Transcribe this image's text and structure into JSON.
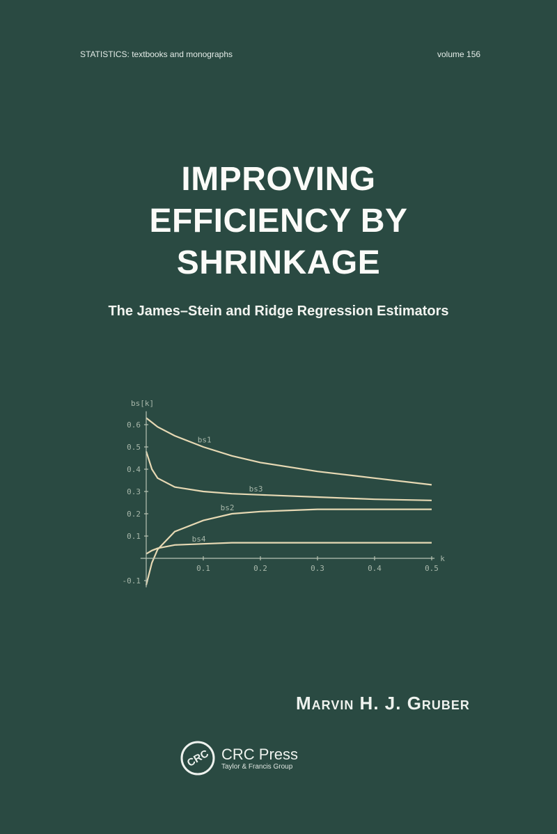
{
  "cover": {
    "series": "STATISTICS:  textbooks and monographs",
    "volume": "volume 156",
    "title_lines": [
      "IMPROVING",
      "EFFICIENCY BY",
      "SHRINKAGE"
    ],
    "subtitle": "The James–Stein and Ridge Regression Estimators",
    "author": "Marvin H. J. Gruber",
    "publisher": "CRC Press",
    "publisher_group": "Taylor & Francis Group",
    "logo_text": "CRC"
  },
  "chart_data": {
    "type": "line",
    "title": "",
    "xlabel": "k",
    "ylabel": "bs[k]",
    "xlim": [
      0,
      0.5
    ],
    "ylim": [
      -0.12,
      0.65
    ],
    "x_ticks": [
      "0.1",
      "0.2",
      "0.3",
      "0.4",
      "0.5"
    ],
    "y_ticks": [
      "-0.1",
      "0.1",
      "0.2",
      "0.3",
      "0.4",
      "0.5",
      "0.6"
    ],
    "grid": false,
    "x": [
      0,
      0.01,
      0.02,
      0.05,
      0.1,
      0.15,
      0.2,
      0.3,
      0.4,
      0.5
    ],
    "series": [
      {
        "name": "bs1",
        "values": [
          0.63,
          0.61,
          0.59,
          0.55,
          0.5,
          0.46,
          0.43,
          0.39,
          0.36,
          0.33
        ]
      },
      {
        "name": "bs3",
        "values": [
          0.48,
          0.4,
          0.36,
          0.32,
          0.3,
          0.29,
          0.285,
          0.275,
          0.265,
          0.26
        ]
      },
      {
        "name": "bs2",
        "values": [
          -0.12,
          -0.02,
          0.04,
          0.12,
          0.17,
          0.2,
          0.21,
          0.22,
          0.22,
          0.22
        ]
      },
      {
        "name": "bs4",
        "values": [
          0.02,
          0.035,
          0.045,
          0.06,
          0.065,
          0.07,
          0.07,
          0.07,
          0.07,
          0.07
        ]
      }
    ],
    "legend": "inline labels"
  }
}
